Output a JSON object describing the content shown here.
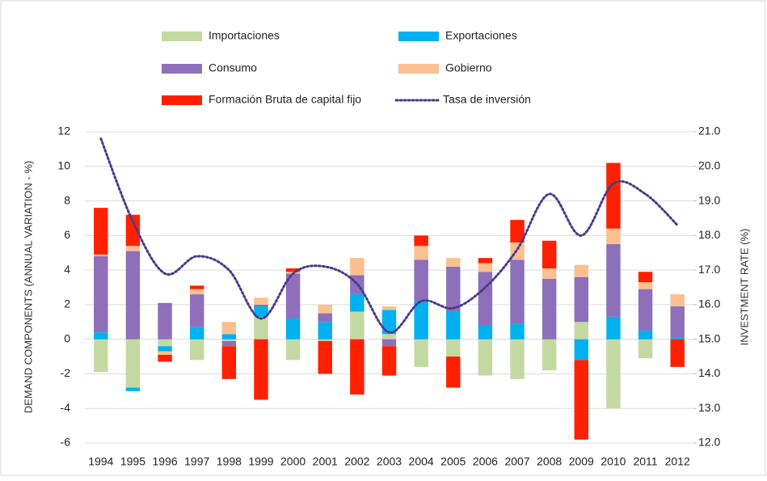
{
  "chart_data": {
    "type": "bar",
    "stacked": true,
    "ylabel": "DEMAND COMPONENTS (ANNUAL VARIATION - %)",
    "y2label": "INVESTMENT RATE (%)",
    "categories": [
      "1994",
      "1995",
      "1996",
      "1997",
      "1998",
      "1999",
      "2000",
      "2001",
      "2002",
      "2003",
      "2004",
      "2005",
      "2006",
      "2007",
      "2008",
      "2009",
      "2010",
      "2011",
      "2012"
    ],
    "ylim": [
      -6,
      12
    ],
    "yticks": [
      -6,
      -4,
      -2,
      0,
      2,
      4,
      6,
      8,
      10,
      12
    ],
    "y2lim": [
      12,
      21
    ],
    "y2ticks": [
      {
        "value": 12,
        "label": "12.0"
      },
      {
        "value": 13,
        "label": "13.0"
      },
      {
        "value": 14,
        "label": "14.0"
      },
      {
        "value": 15,
        "label": "15.0"
      },
      {
        "value": 16,
        "label": "16.0"
      },
      {
        "value": 17,
        "label": "17.0"
      },
      {
        "value": 18,
        "label": "18.0"
      },
      {
        "value": 19,
        "label": "19.0"
      },
      {
        "value": 20,
        "label": "20.0"
      },
      {
        "value": 21,
        "label": "21.0"
      }
    ],
    "grid": true,
    "legend": "top",
    "series": [
      {
        "name": "Importaciones",
        "color": "#c4d9a2",
        "values": [
          -1.9,
          -2.8,
          -0.4,
          -1.2,
          -0.1,
          1.3,
          -1.2,
          -0.1,
          1.6,
          0.3,
          -1.6,
          -1.0,
          -2.1,
          -2.3,
          -1.8,
          1.0,
          -4.0,
          -1.1,
          0
        ]
      },
      {
        "name": "Exportaciones",
        "color": "#00b0f0",
        "values": [
          0.4,
          -0.2,
          -0.3,
          0.7,
          0.3,
          0.6,
          1.2,
          1.0,
          1.0,
          1.4,
          2.2,
          1.6,
          0.8,
          0.9,
          0,
          -1.2,
          1.3,
          0.5,
          0.1
        ]
      },
      {
        "name": "Consumo",
        "color": "#8e6fba",
        "values": [
          4.4,
          5.1,
          2.1,
          1.9,
          -0.3,
          0.1,
          2.6,
          0.5,
          1.1,
          -0.4,
          2.4,
          2.6,
          3.1,
          3.7,
          3.5,
          2.6,
          4.2,
          2.4,
          1.8
        ]
      },
      {
        "name": "Gobierno",
        "color": "#fac090",
        "values": [
          0.1,
          0.3,
          -0.2,
          0.3,
          0.7,
          0.4,
          0.1,
          0.5,
          1.0,
          0.2,
          0.8,
          0.5,
          0.5,
          1.0,
          0.6,
          0.7,
          0.9,
          0.4,
          0.7
        ]
      },
      {
        "name": "Formación Bruta de capital fijo",
        "color": "#ff2000",
        "values": [
          2.7,
          1.8,
          -0.4,
          0.2,
          -1.9,
          -3.5,
          0.2,
          -1.9,
          -3.2,
          -1.7,
          0.6,
          -1.8,
          0.3,
          1.3,
          1.6,
          -4.6,
          3.8,
          0.6,
          -1.6
        ]
      },
      {
        "name": "Tasa de inversión",
        "color": "#4b3a8a",
        "type": "line",
        "axis": "y2",
        "values": [
          20.8,
          18.4,
          16.9,
          17.4,
          17.0,
          15.6,
          16.9,
          17.1,
          16.6,
          15.2,
          16.1,
          15.9,
          16.5,
          17.6,
          19.2,
          18.0,
          19.5,
          19.2,
          18.3
        ]
      }
    ]
  }
}
